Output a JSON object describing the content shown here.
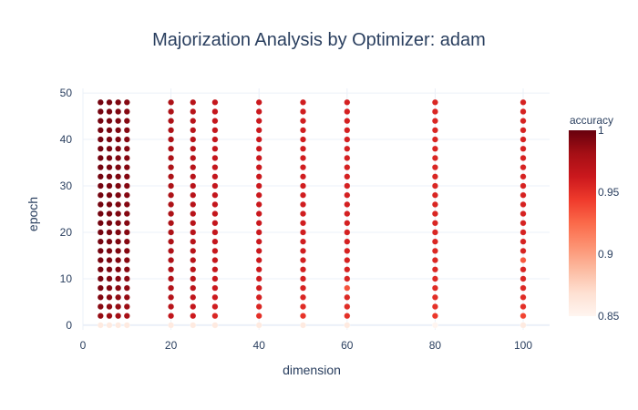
{
  "chart_data": {
    "type": "scatter",
    "title": "Majorization Analysis by Optimizer: adam",
    "xlabel": "dimension",
    "ylabel": "epoch",
    "xlim": [
      0,
      106
    ],
    "ylim": [
      -1,
      51
    ],
    "xticks": [
      0,
      20,
      40,
      60,
      80,
      100
    ],
    "yticks": [
      0,
      10,
      20,
      30,
      40,
      50
    ],
    "grid": true,
    "dimensions": [
      4,
      6,
      8,
      10,
      20,
      25,
      30,
      40,
      50,
      60,
      80,
      100
    ],
    "epochs": [
      0,
      2,
      4,
      6,
      8,
      10,
      12,
      14,
      16,
      18,
      20,
      22,
      24,
      26,
      28,
      30,
      32,
      34,
      36,
      38,
      40,
      42,
      44,
      46,
      48
    ],
    "accuracy_by_dimension": [
      [
        0.86,
        0.986,
        0.99,
        0.992,
        0.994,
        0.995,
        0.995,
        0.995,
        0.996,
        0.996,
        0.996,
        0.996,
        0.996,
        0.996,
        0.996,
        0.996,
        0.996,
        0.996,
        0.996,
        0.996,
        0.996,
        0.996,
        0.996,
        0.996,
        0.996
      ],
      [
        0.86,
        0.984,
        0.988,
        0.99,
        0.992,
        0.993,
        0.994,
        0.994,
        0.994,
        0.995,
        0.995,
        0.995,
        0.995,
        0.995,
        0.995,
        0.995,
        0.995,
        0.995,
        0.995,
        0.995,
        0.995,
        0.995,
        0.995,
        0.995,
        0.995
      ],
      [
        0.86,
        0.982,
        0.986,
        0.988,
        0.99,
        0.991,
        0.992,
        0.992,
        0.993,
        0.993,
        0.993,
        0.993,
        0.993,
        0.993,
        0.993,
        0.993,
        0.993,
        0.993,
        0.993,
        0.993,
        0.993,
        0.993,
        0.993,
        0.993,
        0.993
      ],
      [
        0.86,
        0.98,
        0.984,
        0.986,
        0.988,
        0.989,
        0.99,
        0.99,
        0.991,
        0.991,
        0.991,
        0.991,
        0.991,
        0.991,
        0.991,
        0.991,
        0.991,
        0.991,
        0.991,
        0.991,
        0.991,
        0.991,
        0.991,
        0.991,
        0.991
      ],
      [
        0.86,
        0.968,
        0.972,
        0.974,
        0.975,
        0.976,
        0.977,
        0.977,
        0.977,
        0.978,
        0.978,
        0.978,
        0.978,
        0.978,
        0.978,
        0.978,
        0.978,
        0.978,
        0.978,
        0.978,
        0.978,
        0.978,
        0.978,
        0.978,
        0.978
      ],
      [
        0.86,
        0.962,
        0.966,
        0.968,
        0.97,
        0.971,
        0.971,
        0.972,
        0.972,
        0.972,
        0.972,
        0.972,
        0.972,
        0.972,
        0.972,
        0.972,
        0.972,
        0.972,
        0.972,
        0.972,
        0.972,
        0.972,
        0.972,
        0.972,
        0.972
      ],
      [
        0.86,
        0.955,
        0.96,
        0.962,
        0.963,
        0.964,
        0.965,
        0.965,
        0.965,
        0.966,
        0.966,
        0.966,
        0.966,
        0.966,
        0.966,
        0.966,
        0.966,
        0.966,
        0.966,
        0.966,
        0.966,
        0.966,
        0.966,
        0.966,
        0.966
      ],
      [
        0.86,
        0.95,
        0.955,
        0.958,
        0.96,
        0.961,
        0.962,
        0.962,
        0.963,
        0.963,
        0.963,
        0.963,
        0.963,
        0.963,
        0.963,
        0.963,
        0.963,
        0.963,
        0.963,
        0.963,
        0.963,
        0.963,
        0.963,
        0.963,
        0.963
      ],
      [
        0.86,
        0.948,
        0.952,
        0.955,
        0.957,
        0.958,
        0.959,
        0.959,
        0.96,
        0.96,
        0.96,
        0.96,
        0.96,
        0.96,
        0.96,
        0.96,
        0.96,
        0.96,
        0.96,
        0.96,
        0.96,
        0.96,
        0.96,
        0.96,
        0.96
      ],
      [
        0.86,
        0.95,
        0.952,
        0.954,
        0.934,
        0.956,
        0.957,
        0.957,
        0.957,
        0.958,
        0.958,
        0.958,
        0.958,
        0.958,
        0.958,
        0.958,
        0.958,
        0.958,
        0.958,
        0.958,
        0.958,
        0.958,
        0.958,
        0.958,
        0.958
      ],
      [
        0.85,
        0.946,
        0.949,
        0.951,
        0.952,
        0.953,
        0.954,
        0.954,
        0.954,
        0.955,
        0.955,
        0.955,
        0.955,
        0.955,
        0.955,
        0.955,
        0.955,
        0.955,
        0.955,
        0.955,
        0.955,
        0.955,
        0.955,
        0.955,
        0.955
      ],
      [
        0.86,
        0.94,
        0.95,
        0.952,
        0.954,
        0.955,
        0.956,
        0.932,
        0.957,
        0.957,
        0.957,
        0.957,
        0.957,
        0.957,
        0.957,
        0.957,
        0.957,
        0.957,
        0.957,
        0.957,
        0.957,
        0.957,
        0.957,
        0.957,
        0.957
      ]
    ],
    "colorbar": {
      "title": "accuracy",
      "min": 0.85,
      "max": 1,
      "ticks": [
        0.85,
        0.9,
        0.95,
        1
      ],
      "scale": "Reds"
    }
  }
}
